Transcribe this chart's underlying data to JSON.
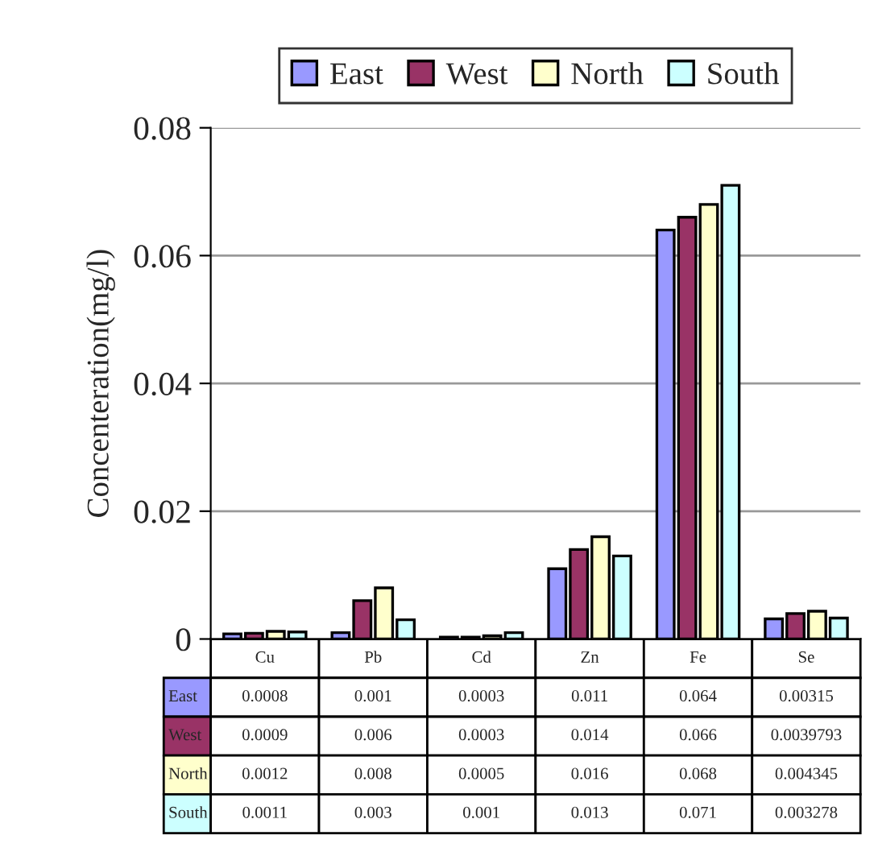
{
  "chart_data": {
    "type": "bar",
    "ylabel": "Concenteration(mg/l)",
    "categories": [
      "Cu",
      "Pb",
      "Cd",
      "Zn",
      "Fe",
      "Se"
    ],
    "series": [
      {
        "name": "East",
        "color": "#9999ff",
        "values": [
          0.0008,
          0.001,
          0.0003,
          0.011,
          0.064,
          0.00315
        ]
      },
      {
        "name": "West",
        "color": "#993366",
        "values": [
          0.0009,
          0.006,
          0.0003,
          0.014,
          0.066,
          0.0039793
        ]
      },
      {
        "name": "North",
        "color": "#ffffcc",
        "values": [
          0.0012,
          0.008,
          0.0005,
          0.016,
          0.068,
          0.004345
        ]
      },
      {
        "name": "South",
        "color": "#ccffff",
        "values": [
          0.0011,
          0.003,
          0.001,
          0.013,
          0.071,
          0.003278
        ]
      }
    ],
    "ylim": [
      0,
      0.08
    ],
    "yticks": [
      0,
      0.02,
      0.04,
      0.06,
      0.08
    ],
    "grid": "y",
    "legend": "top",
    "data_labels": true
  }
}
